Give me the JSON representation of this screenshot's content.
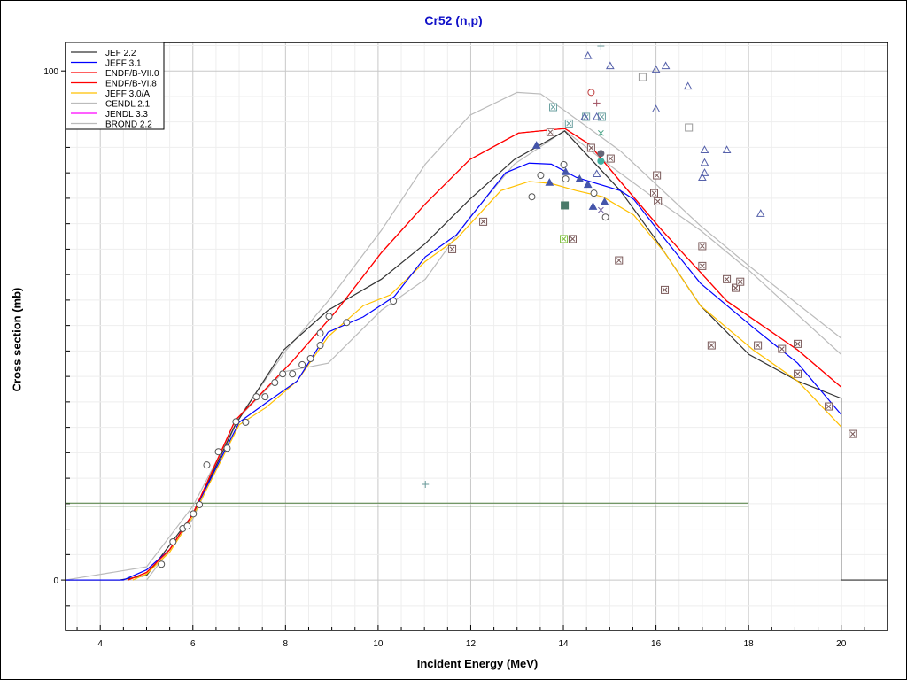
{
  "chart_data": {
    "type": "line",
    "title": "Cr52 (n,p)",
    "xlabel": "Incident Energy (MeV)",
    "ylabel": "Cross section (mb)",
    "xlim": [
      3.25,
      21.0
    ],
    "ylim": [
      -9.9,
      105.6
    ],
    "x_ticks": [
      4,
      6,
      8,
      10,
      12,
      14,
      16,
      18,
      20
    ],
    "y_ticks": [
      0,
      100
    ],
    "grid": true,
    "legend_position": "top-left",
    "series": [
      {
        "name": "JEF 2.2",
        "color": "#333333",
        "points": [
          [
            3.25,
            0
          ],
          [
            4.42,
            0
          ],
          [
            5.0,
            0.9
          ],
          [
            6.01,
            13
          ],
          [
            6.91,
            30.4
          ],
          [
            7.96,
            45.2
          ],
          [
            8.92,
            53
          ],
          [
            10.07,
            59.1
          ],
          [
            11.02,
            66.1
          ],
          [
            11.98,
            74.8
          ],
          [
            12.94,
            82.6
          ],
          [
            14.03,
            88.2
          ],
          [
            15.23,
            76.5
          ],
          [
            15.99,
            67
          ],
          [
            16.96,
            53.9
          ],
          [
            18.01,
            44.3
          ],
          [
            19.06,
            39.1
          ],
          [
            20.0,
            35.7
          ],
          [
            20.0,
            0
          ],
          [
            21.0,
            0
          ]
        ]
      },
      {
        "name": "JEFF 3.1",
        "color": "#0000ff",
        "points": [
          [
            3.25,
            0
          ],
          [
            4.5,
            0
          ],
          [
            5.0,
            2
          ],
          [
            5.5,
            6
          ],
          [
            6.0,
            13
          ],
          [
            6.5,
            22
          ],
          [
            7.0,
            31
          ],
          [
            7.58,
            34.8
          ],
          [
            8.25,
            39.1
          ],
          [
            8.92,
            48.7
          ],
          [
            9.68,
            51.7
          ],
          [
            10.35,
            55.7
          ],
          [
            11.02,
            63.5
          ],
          [
            11.69,
            67.8
          ],
          [
            12.75,
            80
          ],
          [
            13.26,
            81.9
          ],
          [
            13.74,
            81.7
          ],
          [
            14.28,
            79.1
          ],
          [
            15.23,
            76.5
          ],
          [
            15.52,
            74.8
          ],
          [
            16.19,
            67
          ],
          [
            16.96,
            58.3
          ],
          [
            18.1,
            49.6
          ],
          [
            19.06,
            42.6
          ],
          [
            20.0,
            32.5
          ]
        ]
      },
      {
        "name": "ENDF/B-VII.0",
        "color": "#ff0000",
        "points": [
          [
            4.6,
            0
          ],
          [
            5.0,
            1.5
          ],
          [
            5.5,
            6
          ],
          [
            6.0,
            13
          ],
          [
            6.91,
            31.3
          ],
          [
            8.15,
            43
          ],
          [
            9.11,
            53
          ],
          [
            10.07,
            64.3
          ],
          [
            11.02,
            73.9
          ],
          [
            11.98,
            82.6
          ],
          [
            13.03,
            87.8
          ],
          [
            14.03,
            88.7
          ],
          [
            14.56,
            85.6
          ],
          [
            15.23,
            78.3
          ],
          [
            16.1,
            69
          ],
          [
            17.53,
            54.8
          ],
          [
            19.06,
            45.2
          ],
          [
            20.0,
            37.9
          ]
        ]
      },
      {
        "name": "ENDF/B-VI.8",
        "color": "#ff0000",
        "points": [
          [
            4.6,
            0
          ],
          [
            5.0,
            1.5
          ],
          [
            5.5,
            6
          ],
          [
            6.0,
            13
          ],
          [
            6.91,
            31.3
          ],
          [
            8.15,
            43
          ],
          [
            9.11,
            53
          ],
          [
            10.07,
            64.3
          ],
          [
            11.02,
            73.9
          ],
          [
            11.98,
            82.6
          ],
          [
            13.03,
            87.8
          ],
          [
            14.03,
            88.7
          ],
          [
            14.56,
            85.6
          ],
          [
            15.23,
            78.3
          ],
          [
            16.1,
            69
          ],
          [
            17.53,
            54.8
          ],
          [
            19.06,
            45.2
          ],
          [
            20.0,
            37.9
          ]
        ]
      },
      {
        "name": "JEFF 3.0/A",
        "color": "#ffc000",
        "points": [
          [
            4.7,
            0
          ],
          [
            5.0,
            1.2
          ],
          [
            5.5,
            5.5
          ],
          [
            6.0,
            12.5
          ],
          [
            7.0,
            30.5
          ],
          [
            7.58,
            33.9
          ],
          [
            8.25,
            39.1
          ],
          [
            8.92,
            47.8
          ],
          [
            9.68,
            53.9
          ],
          [
            10.26,
            56
          ],
          [
            11.02,
            62.6
          ],
          [
            11.69,
            67
          ],
          [
            12.65,
            76.5
          ],
          [
            13.26,
            78.3
          ],
          [
            13.74,
            77.9
          ],
          [
            14.28,
            76.5
          ],
          [
            14.85,
            75.3
          ],
          [
            15.52,
            71.7
          ],
          [
            16.19,
            64.3
          ],
          [
            16.96,
            53.9
          ],
          [
            18.1,
            45.2
          ],
          [
            19.06,
            39.1
          ],
          [
            20.0,
            30.1
          ]
        ]
      },
      {
        "name": "CENDL 2.1",
        "color": "#bbbbbb",
        "points": [
          [
            3.25,
            0
          ],
          [
            5.0,
            2.6
          ],
          [
            6.0,
            14.5
          ],
          [
            7.0,
            32
          ],
          [
            8.0,
            45
          ],
          [
            8.92,
            54.8
          ],
          [
            10.07,
            68.7
          ],
          [
            11.02,
            81.7
          ],
          [
            11.98,
            91.3
          ],
          [
            13.0,
            95.8
          ],
          [
            13.51,
            95.5
          ],
          [
            14.03,
            92.2
          ],
          [
            15.23,
            84.3
          ],
          [
            16.96,
            69.6
          ],
          [
            18.01,
            61.7
          ],
          [
            20.0,
            47.5
          ]
        ]
      },
      {
        "name": "JENDL 3.3",
        "color": "#ff00ff",
        "points": []
      },
      {
        "name": "BROND 2.2",
        "color": "#bbbbbb",
        "points": [
          [
            5.0,
            0
          ],
          [
            6.0,
            12
          ],
          [
            7.0,
            32
          ],
          [
            7.96,
            40.9
          ],
          [
            8.92,
            42.6
          ],
          [
            10.07,
            53
          ],
          [
            11.02,
            59.1
          ],
          [
            11.98,
            71.3
          ],
          [
            12.94,
            81.7
          ],
          [
            14.03,
            88.3
          ],
          [
            15.04,
            81.2
          ],
          [
            16.0,
            74.8
          ],
          [
            16.96,
            68.7
          ],
          [
            18.0,
            60.9
          ],
          [
            20.0,
            44.3
          ]
        ]
      }
    ],
    "reference_lines": [
      {
        "color": "#4a7a3a",
        "x": [
          3.25,
          18.0
        ],
        "y": 15.1
      },
      {
        "color": "#4a7a3a",
        "x": [
          3.25,
          18.0
        ],
        "y": 14.5
      }
    ],
    "experimental_points": [
      {
        "m": "circle",
        "c": "#555555",
        "p": [
          [
            5.32,
            3.1
          ],
          [
            5.57,
            7.5
          ],
          [
            5.78,
            10.1
          ],
          [
            5.88,
            10.6
          ],
          [
            6.01,
            13
          ],
          [
            6.14,
            14.8
          ],
          [
            6.3,
            22.6
          ],
          [
            6.55,
            25.2
          ],
          [
            6.74,
            25.9
          ],
          [
            6.93,
            31.1
          ],
          [
            7.14,
            31
          ],
          [
            7.37,
            36
          ],
          [
            7.56,
            36
          ],
          [
            7.77,
            38.8
          ],
          [
            7.94,
            40.5
          ],
          [
            8.15,
            40.5
          ],
          [
            8.36,
            42.3
          ],
          [
            8.54,
            43.5
          ],
          [
            8.75,
            46.1
          ],
          [
            8.75,
            48.5
          ],
          [
            8.94,
            51.8
          ],
          [
            9.32,
            50.6
          ],
          [
            10.33,
            54.8
          ],
          [
            13.32,
            75.3
          ],
          [
            13.51,
            79.5
          ],
          [
            14.05,
            78.8
          ],
          [
            14.66,
            76
          ],
          [
            14.91,
            71.3
          ],
          [
            14.01,
            81.6
          ]
        ]
      },
      {
        "m": "boxx",
        "c": "#7a5a5a",
        "p": [
          [
            11.6,
            65
          ],
          [
            12.27,
            70.4
          ],
          [
            13.72,
            88
          ],
          [
            14.6,
            84.9
          ],
          [
            15.02,
            82.8
          ],
          [
            15.2,
            62.8
          ],
          [
            15.96,
            76
          ],
          [
            16.02,
            79.5
          ],
          [
            16.04,
            74.4
          ],
          [
            16.19,
            57
          ],
          [
            17.0,
            65.6
          ],
          [
            17.0,
            61.7
          ],
          [
            17.2,
            46.1
          ],
          [
            17.53,
            59.1
          ],
          [
            17.72,
            57.4
          ],
          [
            17.82,
            58.6
          ],
          [
            18.2,
            46.1
          ],
          [
            18.72,
            45.4
          ],
          [
            19.06,
            46.4
          ],
          [
            19.06,
            40.5
          ],
          [
            19.73,
            34.1
          ],
          [
            20.25,
            28.7
          ],
          [
            14.2,
            67
          ]
        ]
      },
      {
        "m": "boxx",
        "c": "#6aa0a0",
        "p": [
          [
            13.78,
            92.9
          ],
          [
            14.12,
            89.7
          ],
          [
            14.49,
            91
          ],
          [
            14.83,
            91
          ]
        ]
      },
      {
        "m": "boxx",
        "c": "#80c040",
        "p": [
          [
            14.01,
            67
          ]
        ]
      },
      {
        "m": "trif",
        "c": "#4455aa",
        "p": [
          [
            13.42,
            85.4
          ],
          [
            13.7,
            78.1
          ],
          [
            14.05,
            80.2
          ],
          [
            14.35,
            78.8
          ],
          [
            14.53,
            77.7
          ],
          [
            14.64,
            73.4
          ],
          [
            14.89,
            74.3
          ]
        ]
      },
      {
        "m": "tri",
        "c": "#5560aa",
        "p": [
          [
            14.53,
            103
          ],
          [
            15.01,
            101
          ],
          [
            16.0,
            100.3
          ],
          [
            16.21,
            101
          ],
          [
            16.69,
            97
          ],
          [
            16.0,
            92.5
          ],
          [
            14.72,
            91
          ],
          [
            17.05,
            84.5
          ],
          [
            17.53,
            84.5
          ],
          [
            17.05,
            82
          ],
          [
            17.05,
            80
          ],
          [
            17.0,
            79.1
          ],
          [
            18.26,
            72
          ],
          [
            14.72,
            79.8
          ],
          [
            14.46,
            91
          ]
        ]
      },
      {
        "m": "square",
        "c": "#999999",
        "p": [
          [
            15.71,
            98.8
          ],
          [
            16.71,
            88.9
          ]
        ]
      },
      {
        "m": "squaref",
        "c": "#4a7a6a",
        "p": [
          [
            14.03,
            73.6
          ]
        ]
      },
      {
        "m": "plus",
        "c": "#6a9a9a",
        "p": [
          [
            14.81,
            104.9
          ],
          [
            11.02,
            18.8
          ]
        ]
      },
      {
        "m": "plus",
        "c": "#a05060",
        "p": [
          [
            14.72,
            93.7
          ]
        ]
      },
      {
        "m": "x",
        "c": "#40a080",
        "p": [
          [
            14.81,
            87.8
          ]
        ]
      },
      {
        "m": "x",
        "c": "#7060a0",
        "p": [
          [
            14.81,
            72.7
          ]
        ]
      },
      {
        "m": "dot",
        "c": "#666677",
        "p": [
          [
            14.81,
            83.8
          ]
        ]
      },
      {
        "m": "dot",
        "c": "#40b0a0",
        "p": [
          [
            14.81,
            82.3
          ]
        ]
      },
      {
        "m": "circle",
        "c": "#c04040",
        "p": [
          [
            14.6,
            95.8
          ]
        ]
      }
    ]
  }
}
